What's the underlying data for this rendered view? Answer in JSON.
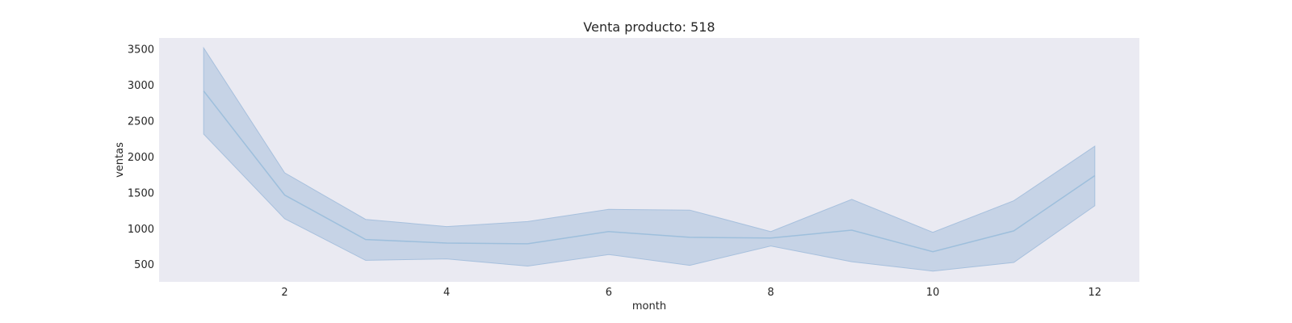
{
  "chart_data": {
    "type": "line",
    "title": "Venta producto: 518",
    "xlabel": "month",
    "ylabel": "ventas",
    "xlim": [
      0.45,
      12.55
    ],
    "ylim": [
      260,
      3660
    ],
    "xticks": [
      2,
      4,
      6,
      8,
      10,
      12
    ],
    "yticks": [
      500,
      1000,
      1500,
      2000,
      2500,
      3000,
      3500
    ],
    "grid": false,
    "x": [
      1,
      2,
      3,
      4,
      5,
      6,
      7,
      8,
      9,
      10,
      11,
      12
    ],
    "series": [
      {
        "values": [
          2920,
          1470,
          850,
          800,
          790,
          960,
          880,
          870,
          980,
          680,
          970,
          1740
        ],
        "ci_lower": [
          2320,
          1140,
          560,
          580,
          480,
          640,
          490,
          760,
          540,
          410,
          530,
          1320
        ],
        "ci_upper": [
          3520,
          1780,
          1130,
          1030,
          1100,
          1270,
          1260,
          960,
          1410,
          950,
          1390,
          2150
        ]
      }
    ],
    "colors": {
      "plot_background": "#eaeaf2",
      "line": "#9ebfdc",
      "band": "#a7c0dd"
    }
  }
}
